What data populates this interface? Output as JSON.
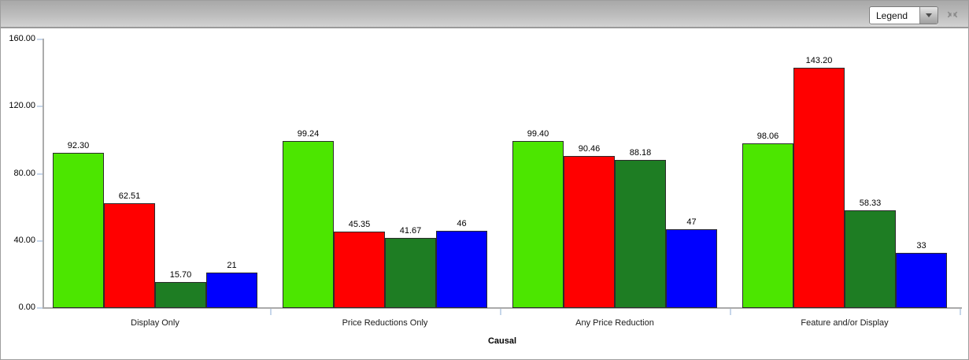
{
  "toolbar": {
    "legend_label": "Legend",
    "icons": {
      "dropdown_arrow": "chevron-down-icon",
      "collapse_button": "collapse-arrows-icon"
    }
  },
  "chart_data": {
    "type": "bar",
    "title": "",
    "xlabel": "Causal",
    "ylabel": "",
    "ylim": [
      0,
      160
    ],
    "grid": false,
    "legend_position": "collapsed-dropdown-top-right",
    "y_ticks": [
      {
        "value": 0,
        "label": "0.00"
      },
      {
        "value": 40,
        "label": "40.00"
      },
      {
        "value": 80,
        "label": "80.00"
      },
      {
        "value": 120,
        "label": "120.00"
      },
      {
        "value": 160,
        "label": "160.00"
      }
    ],
    "categories": [
      "Display Only",
      "Price Reductions Only",
      "Any Price Reduction",
      "Feature and/or Display"
    ],
    "series": [
      {
        "name": "bright-green",
        "color": "#4CE600",
        "values": [
          92.3,
          99.24,
          99.4,
          98.06
        ],
        "labels": [
          "92.30",
          "99.24",
          "99.40",
          "98.06"
        ]
      },
      {
        "name": "red",
        "color": "#FF0000",
        "values": [
          62.51,
          45.35,
          90.46,
          143.2
        ],
        "labels": [
          "62.51",
          "45.35",
          "90.46",
          "143.20"
        ]
      },
      {
        "name": "dark-green",
        "color": "#1E7D23",
        "values": [
          15.7,
          41.67,
          88.18,
          58.33
        ],
        "labels": [
          "15.70",
          "41.67",
          "88.18",
          "58.33"
        ]
      },
      {
        "name": "blue",
        "color": "#0000FF",
        "values": [
          21,
          46,
          47,
          33
        ],
        "labels": [
          "21",
          "46",
          "47",
          "33"
        ]
      }
    ]
  }
}
